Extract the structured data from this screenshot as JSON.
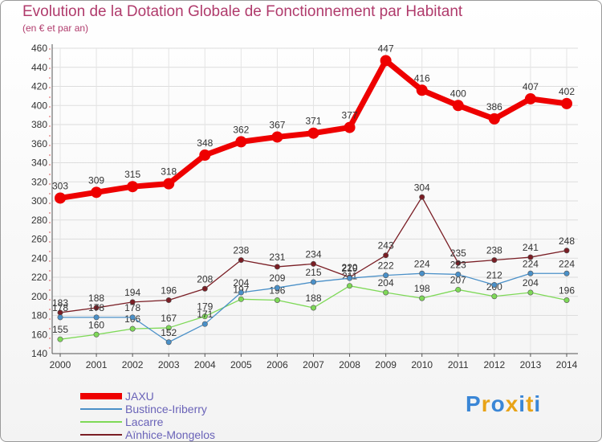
{
  "header": {
    "title": "Evolution de la Dotation Globale de Fonctionnement par Habitant",
    "subtitle": "(en € et par an)"
  },
  "logo": {
    "text": "Proxiti",
    "letters": [
      "P",
      "r",
      "o",
      "x",
      "i",
      "t",
      "i"
    ],
    "colors": [
      "#3a86d6",
      "#e8a317",
      "#3a86d6",
      "#e8a317",
      "#3a86d6",
      "#e8a317",
      "#3a86d6"
    ]
  },
  "chart_data": {
    "type": "line",
    "title": "Evolution de la Dotation Globale de Fonctionnement par Habitant",
    "ylabel": "(en € et par an)",
    "x": [
      2000,
      2001,
      2002,
      2003,
      2004,
      2005,
      2006,
      2007,
      2008,
      2009,
      2010,
      2011,
      2012,
      2013,
      2014
    ],
    "ylim": [
      140,
      460
    ],
    "yticks": [
      140,
      160,
      180,
      200,
      220,
      240,
      260,
      280,
      300,
      320,
      340,
      360,
      380,
      400,
      420,
      440,
      460
    ],
    "grid": true,
    "legend": "bottom-left",
    "series": [
      {
        "name": "JAXU",
        "color": "#ee0000",
        "values": [
          303,
          309,
          315,
          318,
          348,
          362,
          367,
          371,
          377,
          447,
          416,
          400,
          386,
          407,
          402
        ],
        "labels": [
          "303",
          "309",
          "315",
          "318",
          "348",
          "362",
          "367",
          "371",
          "377",
          "447",
          "416",
          "400",
          "386",
          "407",
          "402"
        ]
      },
      {
        "name": "Bustince-Iriberry",
        "color": "#4a90c8",
        "values": [
          178,
          178,
          178,
          152,
          171,
          204,
          209,
          215,
          219,
          222,
          224,
          223,
          212,
          224,
          224
        ],
        "labels": [
          "178",
          "178",
          "178",
          "152",
          "171",
          "204",
          "209",
          "215",
          "219",
          "222",
          "224",
          "223",
          "212",
          "224",
          "224"
        ]
      },
      {
        "name": "Lacarre",
        "color": "#7ed957",
        "values": [
          155,
          160,
          166,
          167,
          179,
          197,
          196,
          188,
          211,
          204,
          198,
          207,
          200,
          204,
          196
        ],
        "labels": [
          "155",
          "160",
          "166",
          "167",
          "179",
          "197",
          "196",
          "188",
          "211",
          "204",
          "198",
          "207",
          "200",
          "204",
          "196"
        ]
      },
      {
        "name": "Aïnhice-Mongelos",
        "color": "#7a1e25",
        "values": [
          183,
          188,
          194,
          196,
          208,
          238,
          231,
          234,
          220,
          243,
          304,
          235,
          238,
          241,
          248
        ],
        "labels": [
          "183",
          "188",
          "194",
          "196",
          "208",
          "238",
          "231",
          "234",
          "220",
          "243",
          "304",
          "235",
          "238",
          "241",
          "248"
        ]
      }
    ]
  },
  "legend": {
    "items": [
      {
        "label": "JAXU",
        "color": "#ee0000"
      },
      {
        "label": "Bustince-Iriberry",
        "color": "#4a90c8"
      },
      {
        "label": "Lacarre",
        "color": "#7ed957"
      },
      {
        "label": "Aïnhice-Mongelos",
        "color": "#7a1e25"
      }
    ]
  }
}
